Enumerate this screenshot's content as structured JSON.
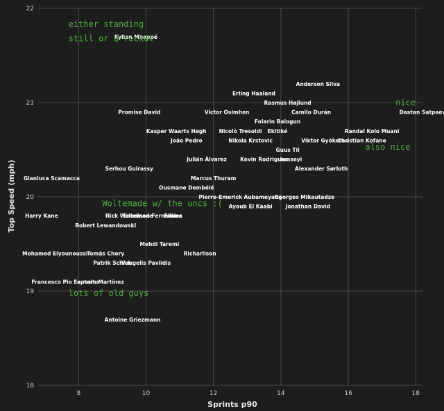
{
  "chart_data": {
    "type": "scatter",
    "title": "",
    "xlabel": "Sprints p90",
    "ylabel": "Top Speed (mph)",
    "xlim": [
      6.8,
      18.2
    ],
    "ylim": [
      18,
      22
    ],
    "xticks": [
      8,
      10,
      12,
      14,
      16,
      18
    ],
    "yticks": [
      18,
      19,
      20,
      21,
      22
    ],
    "grid": true,
    "points": [
      {
        "label": "Kylian Mbappé",
        "x": 9.7,
        "y": 21.7
      },
      {
        "label": "Anderson Silva",
        "x": 15.1,
        "y": 21.2
      },
      {
        "label": "Erling Haaland",
        "x": 13.2,
        "y": 21.1
      },
      {
        "label": "Rasmus Højlund",
        "x": 14.2,
        "y": 21.0
      },
      {
        "label": "Promise David",
        "x": 9.8,
        "y": 20.9
      },
      {
        "label": "Victor Osimhen",
        "x": 12.4,
        "y": 20.9
      },
      {
        "label": "Camilo Durán",
        "x": 14.9,
        "y": 20.9
      },
      {
        "label": "Dastan Satpaev",
        "x": 18.2,
        "y": 20.9
      },
      {
        "label": "Folarin Balogun",
        "x": 13.9,
        "y": 20.8
      },
      {
        "label": "Kasper Waarts Høgh",
        "x": 10.9,
        "y": 20.7
      },
      {
        "label": "Nicolò Tresoldi",
        "x": 12.8,
        "y": 20.7
      },
      {
        "label": "Ekitiké",
        "x": 13.9,
        "y": 20.7
      },
      {
        "label": "Randal Kolo Muani",
        "x": 16.7,
        "y": 20.7
      },
      {
        "label": "João Pedro",
        "x": 11.2,
        "y": 20.6
      },
      {
        "label": "Nikola Krstovic",
        "x": 13.1,
        "y": 20.6
      },
      {
        "label": "Viktor Gyökeres",
        "x": 15.3,
        "y": 20.6
      },
      {
        "label": "Christian Kofane",
        "x": 16.4,
        "y": 20.6
      },
      {
        "label": "Guus Til",
        "x": 14.2,
        "y": 20.5
      },
      {
        "label": "Julián Álvarez",
        "x": 11.8,
        "y": 20.4
      },
      {
        "label": "Kevin Rodrigues",
        "x": 13.5,
        "y": 20.4
      },
      {
        "label": "Iwaseyi",
        "x": 14.3,
        "y": 20.4
      },
      {
        "label": "Serhou Guirassy",
        "x": 9.5,
        "y": 20.3
      },
      {
        "label": "Alexander Sørloth",
        "x": 15.2,
        "y": 20.3
      },
      {
        "label": "Gianluca Scamacca",
        "x": 7.2,
        "y": 20.2
      },
      {
        "label": "Marcus Thuram",
        "x": 12.0,
        "y": 20.2
      },
      {
        "label": "Ousmane Dembélé",
        "x": 11.2,
        "y": 20.1
      },
      {
        "label": "Pierre-Emerick Aubameyang",
        "x": 12.8,
        "y": 20.0
      },
      {
        "label": "Georges Mikautadze",
        "x": 14.7,
        "y": 20.0
      },
      {
        "label": "Ayoub El Kaabi",
        "x": 13.1,
        "y": 19.9
      },
      {
        "label": "Jonathan David",
        "x": 14.8,
        "y": 19.9
      },
      {
        "label": "Harry Kane",
        "x": 6.9,
        "y": 19.8
      },
      {
        "label": "Nick Woltemade",
        "x": 9.5,
        "y": 19.8
      },
      {
        "label": "Edmilson Fernandes",
        "x": 10.2,
        "y": 19.8
      },
      {
        "label": "Filhoa",
        "x": 10.8,
        "y": 19.8
      },
      {
        "label": "Robert Lewandowski",
        "x": 8.8,
        "y": 19.7
      },
      {
        "label": "Mehdi Taremi",
        "x": 10.4,
        "y": 19.5
      },
      {
        "label": "Mohamed Elyounoussi",
        "x": 7.3,
        "y": 19.4
      },
      {
        "label": "Tomás Chory",
        "x": 8.8,
        "y": 19.4
      },
      {
        "label": "Richarlison",
        "x": 11.6,
        "y": 19.4
      },
      {
        "label": "Patrik Schick",
        "x": 9.0,
        "y": 19.3
      },
      {
        "label": "Vangelis Pavlidis",
        "x": 10.0,
        "y": 19.3
      },
      {
        "label": "Francesco Pio Esposito",
        "x": 7.6,
        "y": 19.1
      },
      {
        "label": "Lautaro Martínez",
        "x": 8.6,
        "y": 19.1
      },
      {
        "label": "Antoine Griezmann",
        "x": 9.6,
        "y": 18.7
      }
    ],
    "annotations": [
      {
        "text": "either standing",
        "x": 7.7,
        "y": 21.8
      },
      {
        "text": "still or a rocket",
        "x": 7.7,
        "y": 21.65
      },
      {
        "text": "nice",
        "x": 17.4,
        "y": 20.97
      },
      {
        "text": "also nice",
        "x": 16.5,
        "y": 20.5
      },
      {
        "text": "Woltemade w/ the uncs :(",
        "x": 8.7,
        "y": 19.9
      },
      {
        "text": "lots of old guys",
        "x": 7.7,
        "y": 18.95
      }
    ],
    "colors": {
      "background": "#1d1d1d",
      "grid": "#4a4a4a",
      "point_label": "#ffffff",
      "annotation": "#4fae3f"
    }
  }
}
